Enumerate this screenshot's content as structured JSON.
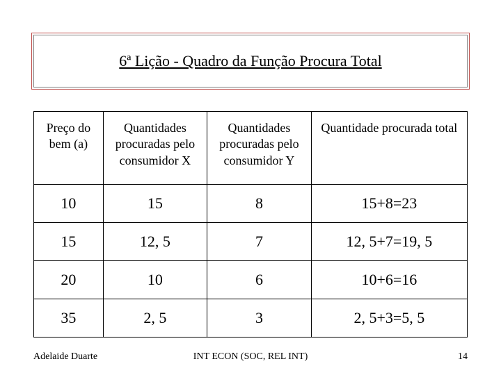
{
  "title": "6ª Lição - Quadro da Função Procura Total",
  "table": {
    "columns": [
      "Preço do bem (a)",
      "Quantidades procuradas pelo consumidor X",
      "Quantidades procuradas pelo consumidor Y",
      "Quantidade procurada total"
    ],
    "rows": [
      [
        "10",
        "15",
        "8",
        "15+8=23"
      ],
      [
        "15",
        "12, 5",
        "7",
        "12, 5+7=19, 5"
      ],
      [
        "20",
        "10",
        "6",
        "10+6=16"
      ],
      [
        "35",
        "2, 5",
        "3",
        "2, 5+3=5, 5"
      ]
    ],
    "col_widths_pct": [
      16,
      24,
      24,
      36
    ],
    "border_color": "#000000",
    "header_fontsize": 18,
    "cell_fontsize": 22
  },
  "title_box": {
    "outline_color": "#c0504d",
    "inner_border_color": "#808080",
    "fontsize": 22
  },
  "footer": {
    "author": "Adelaide Duarte",
    "center": "INT ECON (SOC, REL INT)",
    "page": "14",
    "fontsize": 14
  },
  "background_color": "#ffffff",
  "text_color": "#000000"
}
